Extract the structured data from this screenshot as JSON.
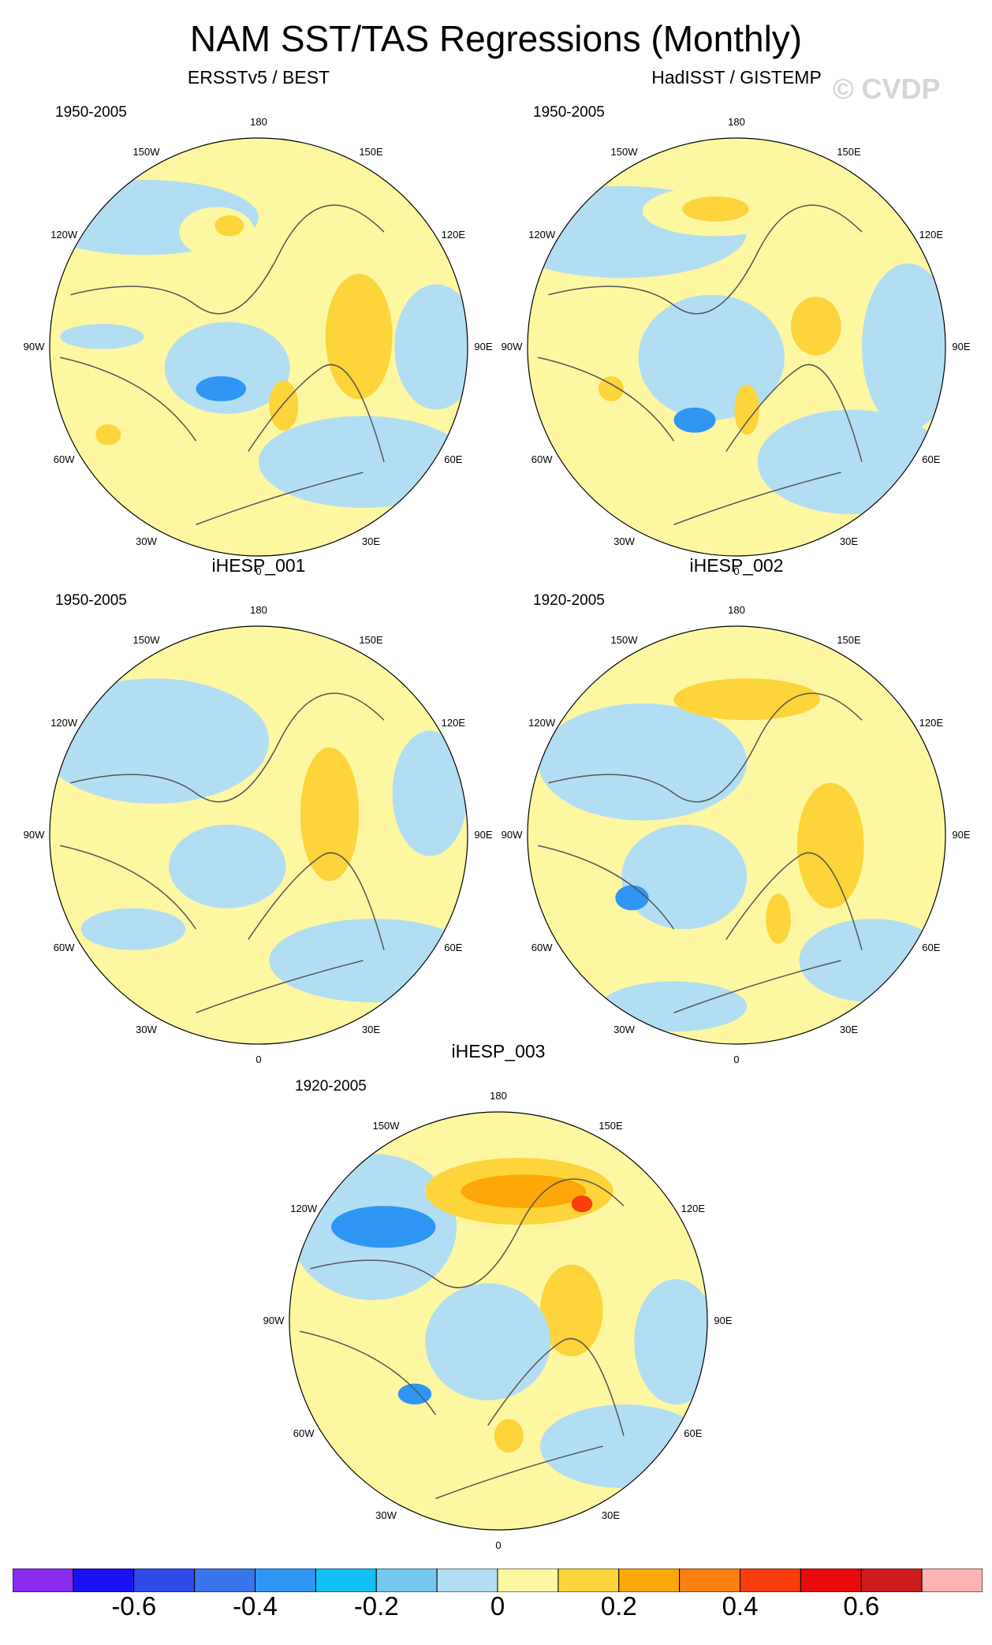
{
  "title": "NAM SST/TAS Regressions (Monthly)",
  "watermark": "© CVDP",
  "lon_labels": [
    "180",
    "150E",
    "120E",
    "90E",
    "60E",
    "30E",
    "0",
    "30W",
    "60W",
    "90W",
    "120W",
    "150W"
  ],
  "panels": [
    {
      "title": "ERSSTv5 / BEST",
      "period": "1950-2005"
    },
    {
      "title": "HadISST / GISTEMP",
      "period": "1950-2005"
    },
    {
      "title": "iHESP_001",
      "period": "1950-2005"
    },
    {
      "title": "iHESP_002",
      "period": "1920-2005"
    },
    {
      "title": "iHESP_003",
      "period": "1920-2005"
    }
  ],
  "colorbar": {
    "colors": [
      "#8a2cf0",
      "#1a12f2",
      "#2e4ae8",
      "#3a76eb",
      "#2f96f3",
      "#12bff7",
      "#76c8f1",
      "#b2def3",
      "#fdf7a2",
      "#fdd43a",
      "#fda808",
      "#fb7f12",
      "#fa3d0c",
      "#e80b0b",
      "#cc1c1c",
      "#fdb3b4"
    ],
    "labels": [
      "-0.6",
      "-0.4",
      "-0.2",
      "0",
      "0.2",
      "0.4",
      "0.6"
    ]
  }
}
